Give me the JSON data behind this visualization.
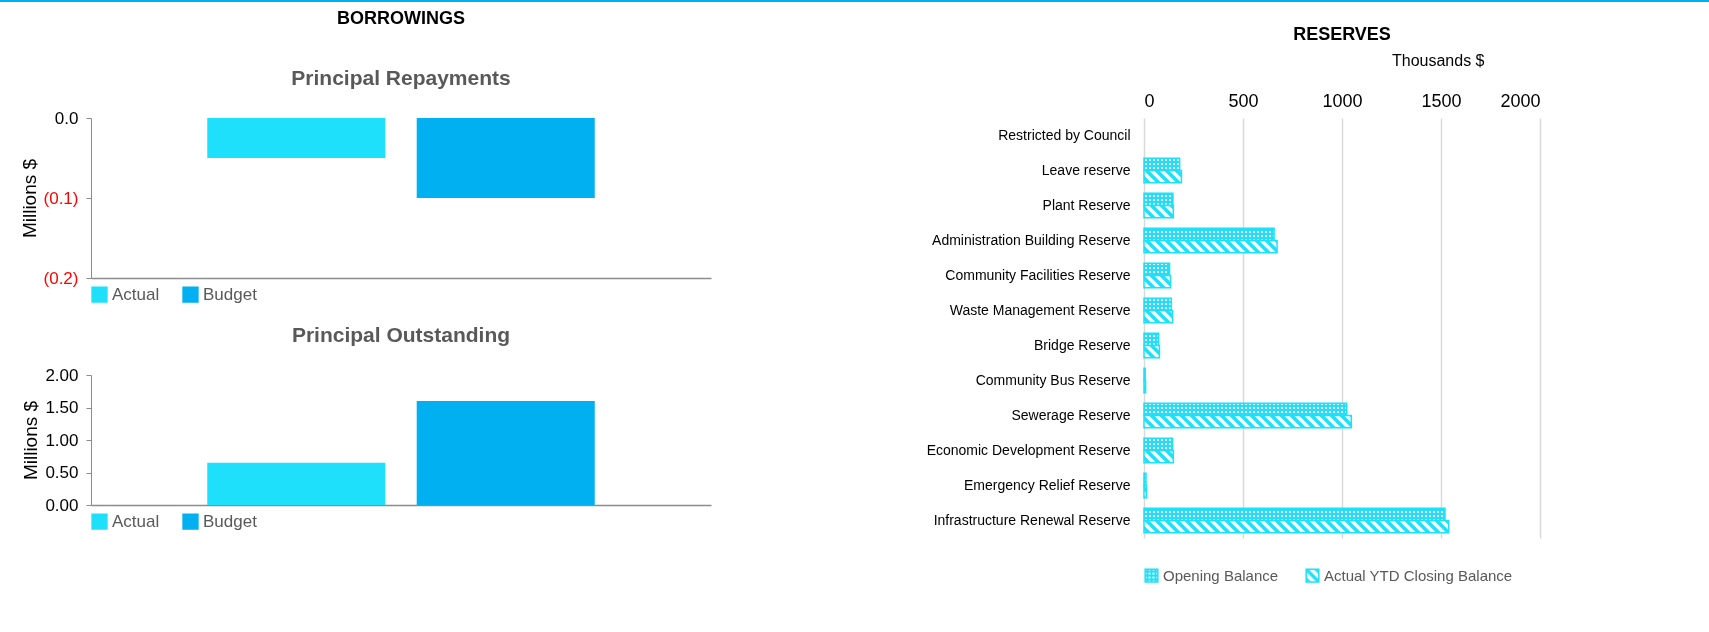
{
  "chart_data": [
    {
      "type": "bar",
      "title": "BORROWINGS",
      "subtitle": "Principal Repayments",
      "ylabel": "Millions $",
      "categories": [
        null
      ],
      "series": [
        {
          "name": "Actual",
          "color": "#1fe0fa",
          "values": [
            -0.05
          ]
        },
        {
          "name": "Budget",
          "color": "#00b0f0",
          "values": [
            -0.1
          ]
        }
      ],
      "ylim": [
        -0.2,
        0
      ],
      "yticks": [
        {
          "value": -0.2,
          "label": "(0.2)"
        },
        {
          "value": -0.1,
          "label": "(0.1)"
        },
        {
          "value": 0,
          "label": "0.0"
        }
      ],
      "grid": false,
      "legend": "bottom"
    },
    {
      "type": "bar",
      "title": "Principal Outstanding",
      "ylabel": "Millions $",
      "categories": [
        null
      ],
      "series": [
        {
          "name": "Actual",
          "color": "#1fe0fa",
          "values": [
            0.65
          ]
        },
        {
          "name": "Budget",
          "color": "#00b0f0",
          "values": [
            1.6
          ]
        }
      ],
      "ylim": [
        0,
        2
      ],
      "yticks": [
        {
          "value": 0,
          "label": "0.00"
        },
        {
          "value": 0.5,
          "label": "0.50"
        },
        {
          "value": 1,
          "label": "1.00"
        },
        {
          "value": 1.5,
          "label": "1.50"
        },
        {
          "value": 2,
          "label": "2.00"
        }
      ],
      "grid": false,
      "legend": "bottom"
    },
    {
      "type": "bar",
      "orientation": "horizontal",
      "title": "RESERVES",
      "xlabel": "Thousands $",
      "categories": [
        "Restricted by Council",
        "Leave reserve",
        "Plant Reserve",
        "Administration Building Reserve",
        "Community Facilities Reserve",
        "Waste Management Reserve",
        "Bridge Reserve",
        "Community Bus Reserve",
        "Sewerage Reserve",
        "Economic Development Reserve",
        "Emergency Relief Reserve",
        "Infrastructure Renewal Reserve"
      ],
      "series": [
        {
          "name": "Opening  Balance",
          "color": "#1fe0fa",
          "values": [
            null,
            180,
            146,
            657,
            129,
            138,
            74,
            6,
            1024,
            144,
            10,
            1520
          ]
        },
        {
          "name": "Actual YTD Closing Balance",
          "color": "#1fe0fa",
          "values": [
            null,
            189,
            148,
            672,
            134,
            144,
            78,
            8,
            1047,
            148,
            13,
            1539
          ]
        }
      ],
      "xlim": [
        0,
        2000
      ],
      "xticks": [
        0,
        500,
        1000,
        1500,
        2000
      ],
      "grid": "x",
      "legend": "bottom"
    }
  ]
}
